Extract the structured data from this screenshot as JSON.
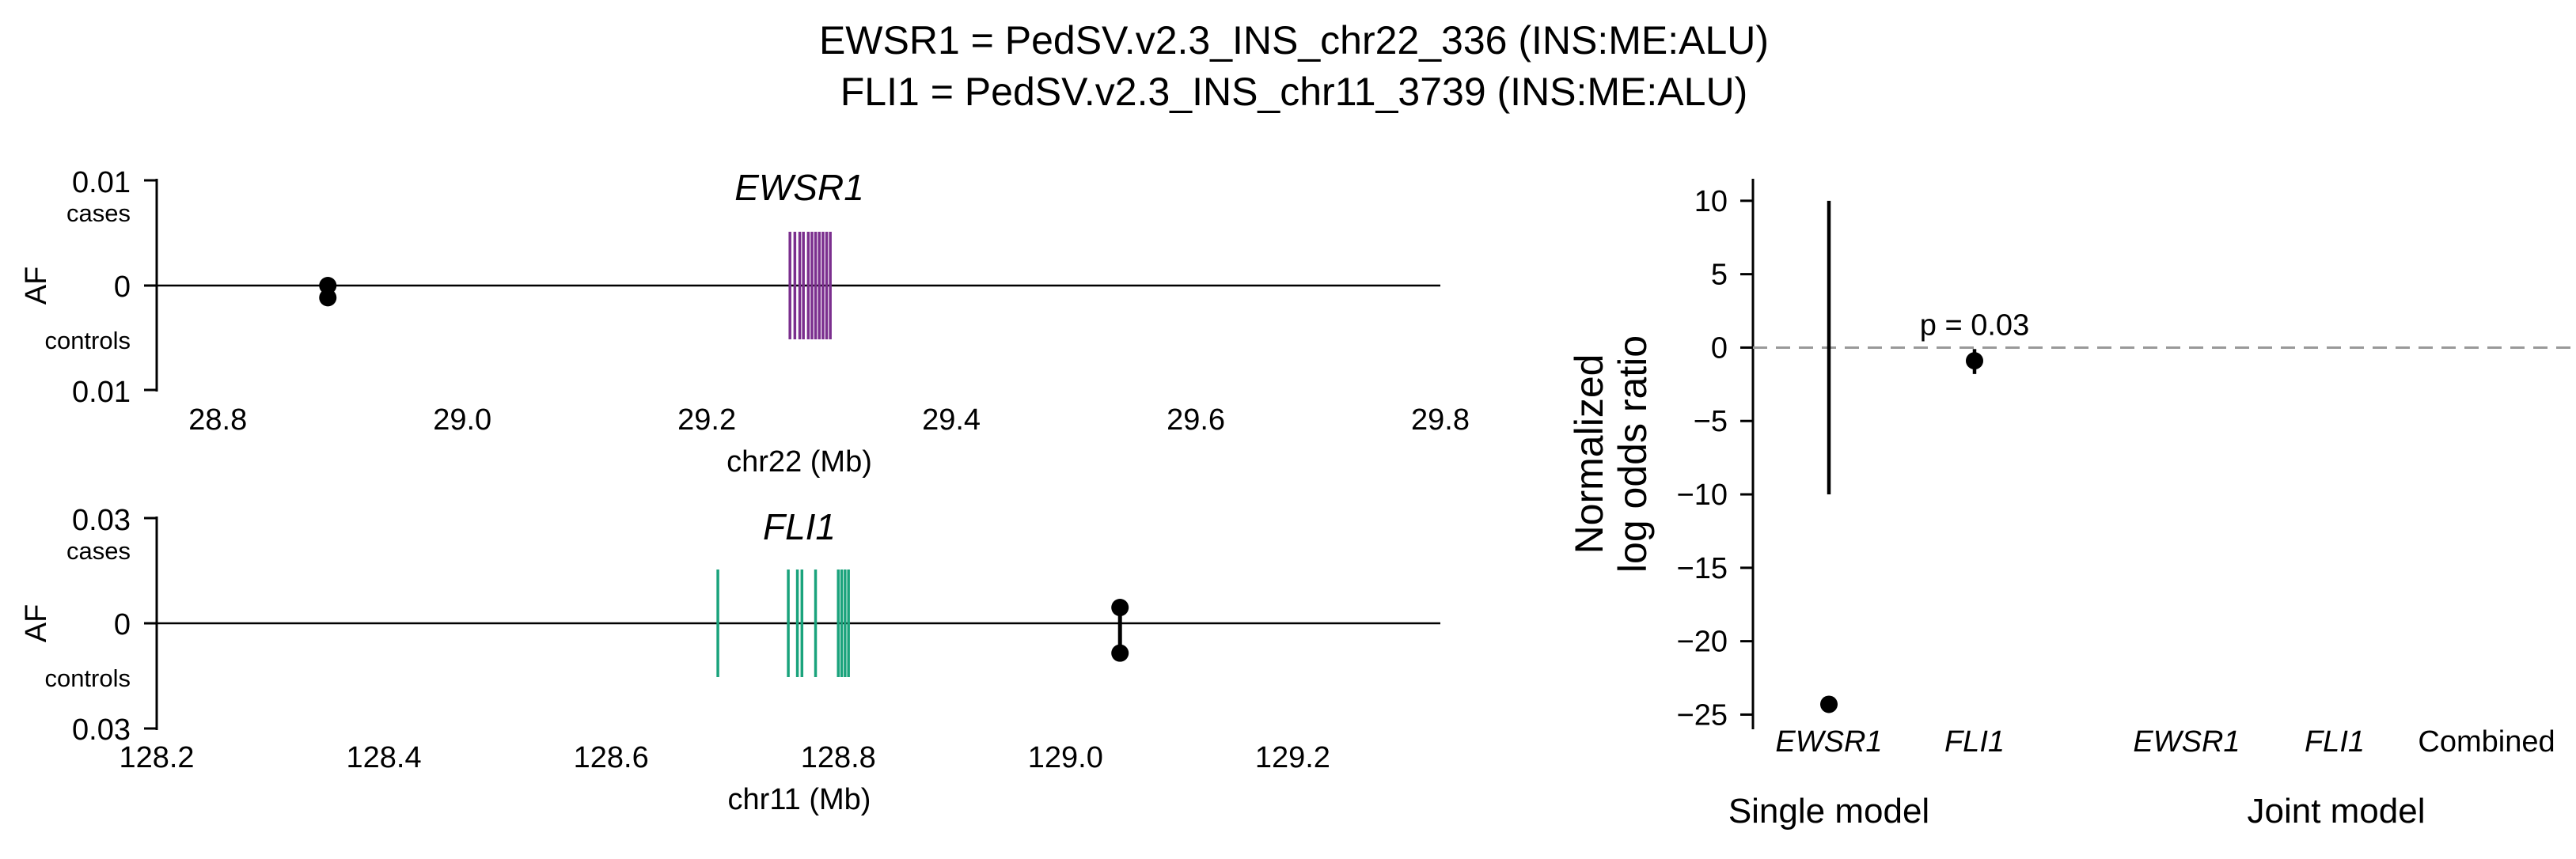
{
  "figure": {
    "title_line1": "EWSR1 = PedSV.v2.3_INS_chr22_336 (INS:ME:ALU)",
    "title_line2": "FLI1 = PedSV.v2.3_INS_chr11_3739 (INS:ME:ALU)"
  },
  "chart_data": [
    {
      "type": "scatter",
      "gene_label": "EWSR1",
      "xlabel": "chr22 (Mb)",
      "ylabel": "AF",
      "y_top_label": "cases",
      "y_bottom_label": "controls",
      "y_top_tick": "0.01",
      "y_mid_tick": "0",
      "y_bottom_tick": "0.01",
      "xlim": [
        28.75,
        29.8
      ],
      "xticks": [
        "28.8",
        "29.0",
        "29.2",
        "29.4",
        "29.6",
        "29.8"
      ],
      "gene_color": "#7b2f8e",
      "exons_mb": [
        29.268,
        29.272,
        29.276,
        29.279,
        29.283,
        29.286,
        29.289,
        29.292,
        29.295,
        29.298,
        29.301
      ],
      "variants": [
        {
          "position_mb": 28.89,
          "af_cases": 0.0,
          "af_controls": 0.0001
        }
      ]
    },
    {
      "type": "scatter",
      "gene_label": "FLI1",
      "xlabel": "chr11 (Mb)",
      "ylabel": "AF",
      "y_top_label": "cases",
      "y_bottom_label": "controls",
      "y_top_tick": "0.03",
      "y_mid_tick": "0",
      "y_bottom_tick": "0.03",
      "xlim": [
        128.2,
        129.33
      ],
      "xticks": [
        "128.2",
        "128.4",
        "128.6",
        "128.8",
        "129.0",
        "129.2"
      ],
      "gene_color": "#1aa37c",
      "exons_mb": [
        128.694,
        128.756,
        128.764,
        128.768,
        128.78,
        128.8,
        128.803,
        128.806,
        128.809
      ],
      "variants": [
        {
          "position_mb": 129.048,
          "af_cases": 0.0045,
          "af_controls": 0.0085
        }
      ]
    },
    {
      "type": "scatter",
      "ylabel_line1": "Normalized",
      "ylabel_line2": "log odds ratio",
      "ylim": [
        -26,
        11.5
      ],
      "yticks": [
        "10",
        "5",
        "0",
        "−5",
        "−10",
        "−15",
        "−20",
        "−25"
      ],
      "reference_line_y": 0,
      "categories": [
        "EWSR1",
        "FLI1",
        "EWSR1",
        "FLI1",
        "Combined"
      ],
      "groups": [
        "Single model",
        "Joint model"
      ],
      "points": [
        {
          "category": "EWSR1",
          "group": "Single model",
          "value": -24.3,
          "ci_low": -10,
          "ci_high": 10
        },
        {
          "category": "FLI1",
          "group": "Single model",
          "value": -0.9,
          "ci_low": -1.8,
          "ci_high": -0.1,
          "p_label": "p = 0.03"
        }
      ]
    }
  ]
}
